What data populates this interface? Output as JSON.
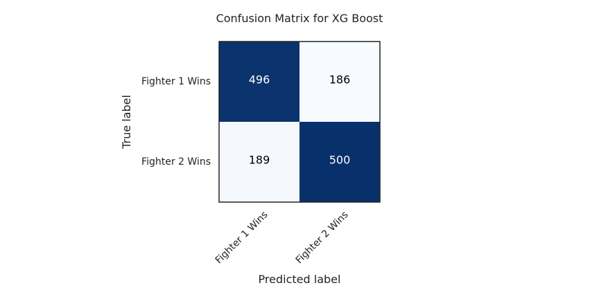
{
  "chart_data": {
    "type": "heatmap",
    "title": "Confusion Matrix for XG Boost",
    "xlabel": "Predicted label",
    "ylabel": "True label",
    "x_categories": [
      "Fighter 1 Wins",
      "Fighter 2 Wins"
    ],
    "y_categories": [
      "Fighter 1 Wins",
      "Fighter 2 Wins"
    ],
    "values": [
      [
        496,
        186
      ],
      [
        189,
        500
      ]
    ],
    "colormap": "Blues",
    "colors": {
      "low": "#f7fbff",
      "high": "#08306b",
      "text_dark": "#000000",
      "text_light": "#ffffff"
    }
  }
}
